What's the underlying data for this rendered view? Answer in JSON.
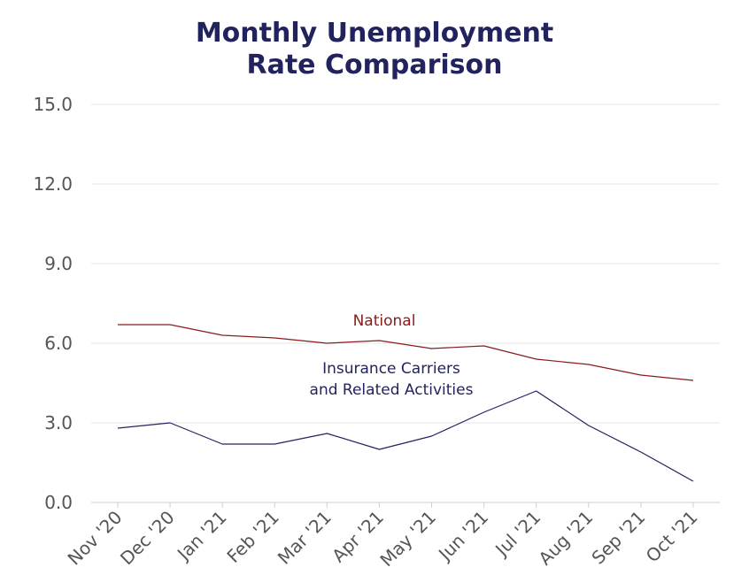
{
  "chart_data": {
    "type": "line",
    "title_lines": [
      "Monthly Unemployment",
      "Rate Comparison"
    ],
    "xlabel": "",
    "ylabel": "",
    "categories": [
      "Nov '20",
      "Dec '20",
      "Jan '21",
      "Feb '21",
      "Mar '21",
      "Apr '21",
      "May '21",
      "Jun '21",
      "Jul '21",
      "Aug '21",
      "Sep '21",
      "Oct '21"
    ],
    "ylim": [
      0,
      15
    ],
    "yticks": [
      "0.0",
      "3.0",
      "6.0",
      "9.0",
      "12.0",
      "15.0"
    ],
    "grid": true,
    "legend": "none",
    "series": [
      {
        "name": "National",
        "label_lines": [
          "National"
        ],
        "color": "#8b1a1a",
        "values": [
          6.7,
          6.7,
          6.3,
          6.2,
          6.0,
          6.1,
          5.8,
          5.9,
          5.4,
          5.2,
          4.8,
          4.6
        ]
      },
      {
        "name": "Insurance Carriers and Related Activities",
        "label_lines": [
          "Insurance Carriers",
          "and Related Activities"
        ],
        "color": "#22235e",
        "values": [
          2.8,
          3.0,
          2.2,
          2.2,
          2.6,
          2.0,
          2.5,
          3.4,
          4.2,
          2.9,
          1.9,
          0.8
        ]
      }
    ]
  }
}
